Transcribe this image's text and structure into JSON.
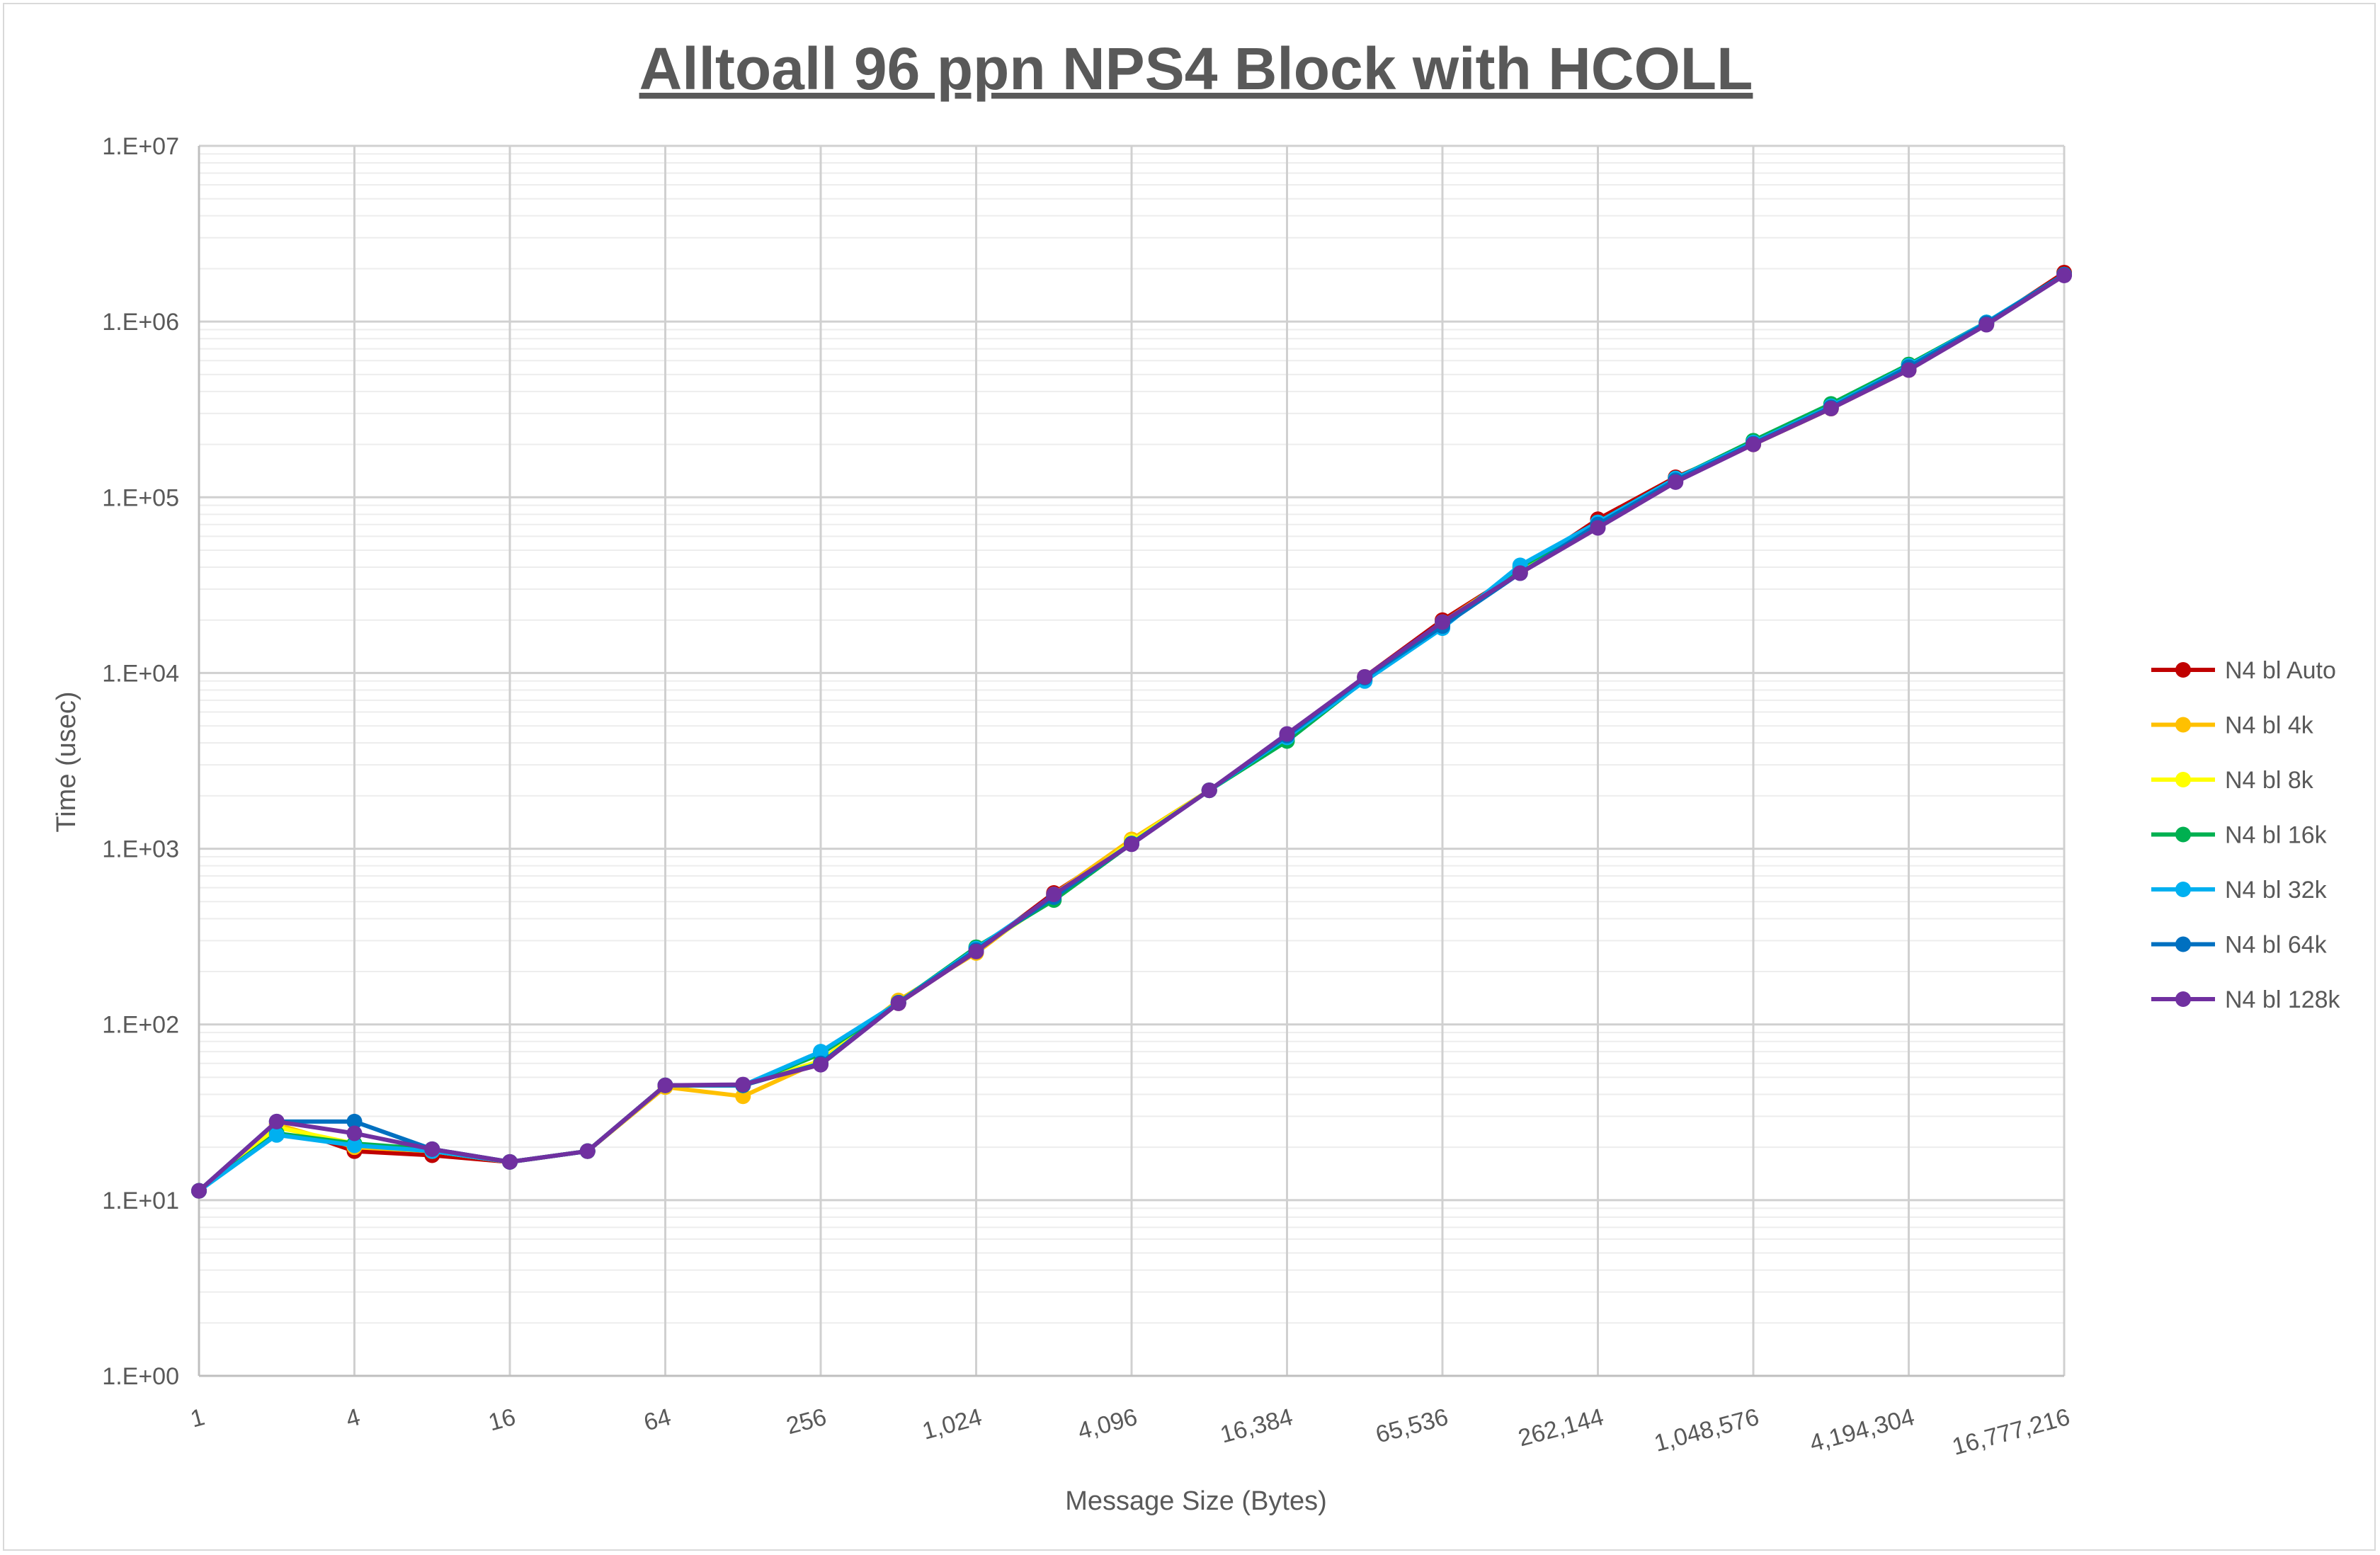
{
  "chart_data": {
    "type": "line",
    "title": "Alltoall 96 ppn NPS4 Block with HCOLL",
    "xlabel": "Message Size (Bytes)",
    "ylabel": "Time (usec)",
    "x_scale": "log2",
    "y_scale": "log10",
    "ylim": [
      1,
      10000000
    ],
    "y_tick_labels": [
      "1.E+00",
      "1.E+01",
      "1.E+02",
      "1.E+03",
      "1.E+04",
      "1.E+05",
      "1.E+06",
      "1.E+07"
    ],
    "x_tick_labels": [
      "1",
      "4",
      "16",
      "64",
      "256",
      "1,024",
      "4,096",
      "16,384",
      "65,536",
      "262,144",
      "1,048,576",
      "4,194,304",
      "16,777,216"
    ],
    "grid": true,
    "legend_position": "right",
    "x": [
      1,
      2,
      4,
      8,
      16,
      32,
      64,
      128,
      256,
      512,
      1024,
      2048,
      4096,
      8192,
      16384,
      32768,
      65536,
      131072,
      262144,
      524288,
      1048576,
      2097152,
      4194304,
      8388608,
      16777216
    ],
    "series": [
      {
        "name": "N4 bl Auto",
        "color": "#c00000",
        "values": [
          11.3,
          27,
          19,
          18,
          16.5,
          19,
          45,
          45,
          60,
          132,
          260,
          560,
          1080,
          2150,
          4400,
          9500,
          20000,
          38000,
          75000,
          130000,
          200000,
          320000,
          530000,
          970000,
          1900000
        ]
      },
      {
        "name": "N4 bl 4k",
        "color": "#ffc000",
        "values": [
          11.3,
          27,
          20,
          19,
          16.5,
          19,
          44,
          39,
          62,
          137,
          255,
          550,
          1130,
          2150,
          4300,
          9400,
          19500,
          38000,
          70000,
          125000,
          200000,
          320000,
          540000,
          980000,
          1850000
        ]
      },
      {
        "name": "N4 bl 8k",
        "color": "#ffff00",
        "values": [
          11.3,
          26,
          21,
          19,
          16.5,
          19,
          45,
          45,
          62,
          133,
          265,
          520,
          1100,
          2150,
          4200,
          9300,
          19000,
          39000,
          71000,
          127000,
          205000,
          330000,
          550000,
          980000,
          1850000
        ]
      },
      {
        "name": "N4 bl 16k",
        "color": "#00b050",
        "values": [
          11.3,
          24,
          21,
          19.5,
          16.5,
          19,
          45,
          45,
          68,
          133,
          275,
          510,
          1070,
          2150,
          4100,
          9100,
          18500,
          40000,
          72000,
          128000,
          210000,
          340000,
          570000,
          990000,
          1850000
        ]
      },
      {
        "name": "N4 bl 32k",
        "color": "#00b0f0",
        "values": [
          11.3,
          23.5,
          20.5,
          19,
          16.5,
          19,
          45,
          45,
          70,
          133,
          270,
          540,
          1070,
          2150,
          4300,
          9000,
          18000,
          41000,
          72000,
          128000,
          205000,
          330000,
          560000,
          990000,
          1850000
        ]
      },
      {
        "name": "N4 bl 64k",
        "color": "#0070c0",
        "values": [
          11.3,
          28,
          28,
          19.5,
          16.5,
          19,
          45,
          45,
          60,
          133,
          265,
          530,
          1070,
          2150,
          4400,
          9400,
          18500,
          37000,
          70000,
          125000,
          202000,
          325000,
          550000,
          980000,
          1850000
        ]
      },
      {
        "name": "N4 bl 128k",
        "color": "#7030a0",
        "values": [
          11.3,
          28,
          24,
          19.5,
          16.5,
          19,
          45,
          45.5,
          59,
          132,
          260,
          550,
          1060,
          2150,
          4500,
          9500,
          19500,
          37000,
          67000,
          122000,
          200000,
          320000,
          530000,
          960000,
          1830000
        ]
      }
    ]
  }
}
